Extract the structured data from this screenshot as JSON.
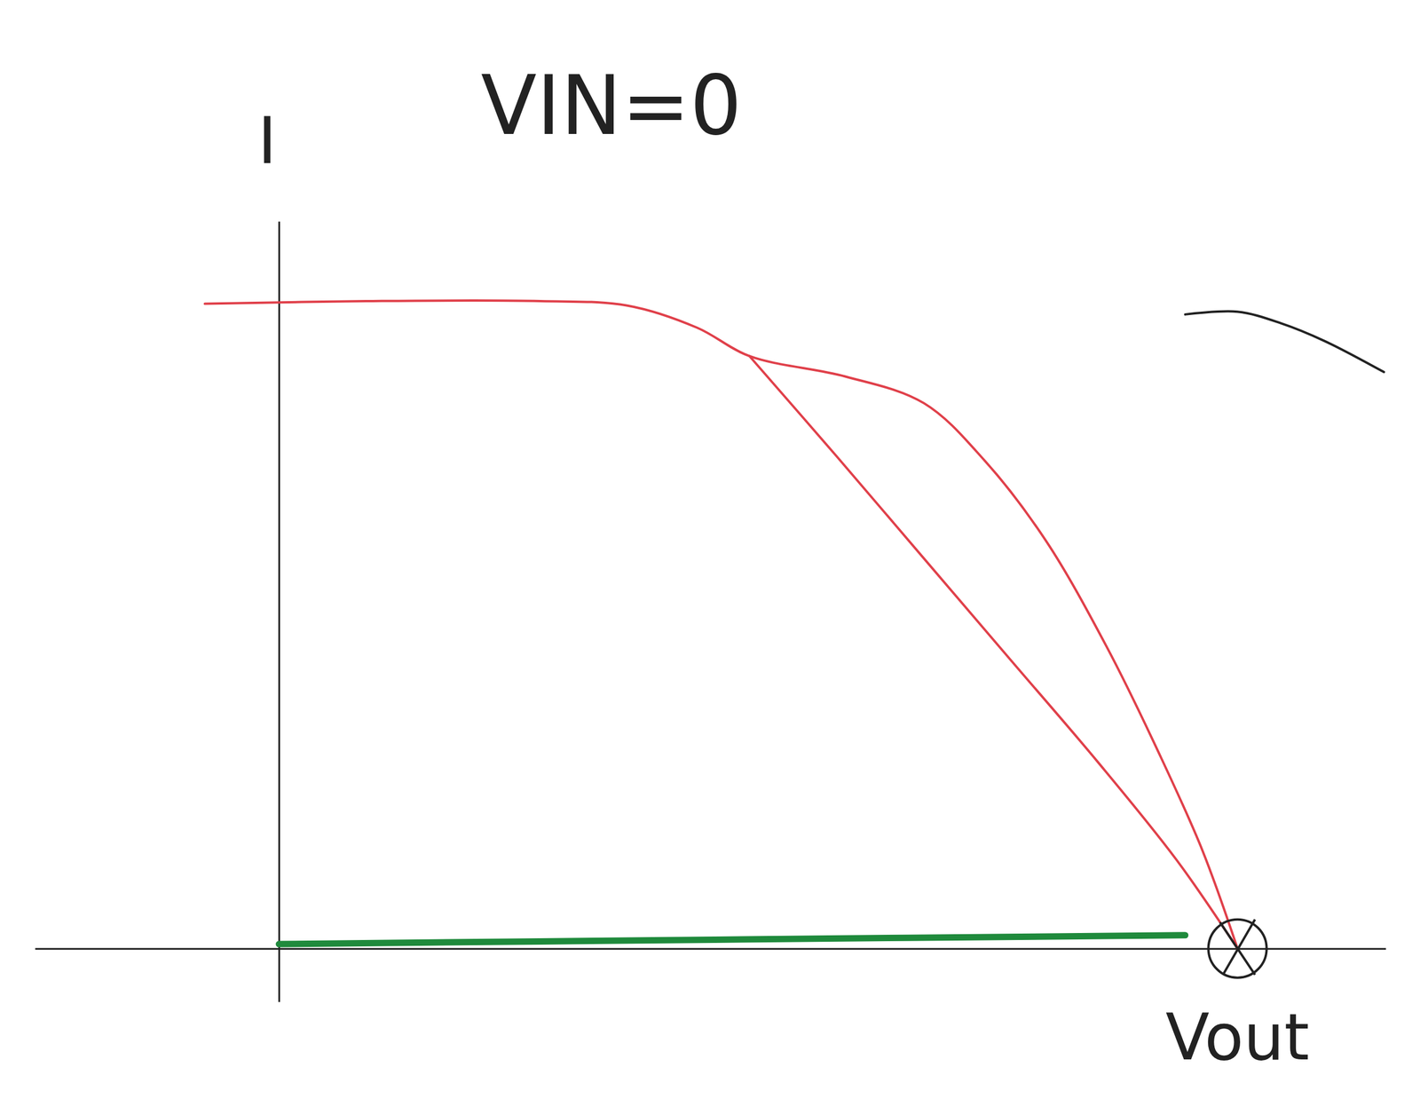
{
  "chart_data": {
    "type": "line",
    "title": "VIN=0",
    "x_label": "Vout",
    "y_label": "I",
    "xlim": [
      -2.8,
      12.7
    ],
    "ylim": [
      -0.6,
      8.2
    ],
    "xticks": [],
    "yticks": [],
    "tick_labels": false,
    "grid": false,
    "series": [
      {
        "color": "#e0404a",
        "line_style": "solid",
        "x": [
          -0.85,
          1.0,
          3.0,
          4.0,
          4.8,
          5.4,
          6.5,
          7.4,
          8.1,
          8.8,
          9.5,
          10.1,
          10.6,
          11.0
        ],
        "values": [
          7.27,
          7.3,
          7.3,
          7.25,
          7.0,
          6.68,
          6.45,
          6.15,
          5.5,
          4.6,
          3.4,
          2.2,
          1.1,
          0.0
        ]
      },
      {
        "color": "#e0404a",
        "line_style": "solid",
        "x": [
          5.4,
          6.4,
          7.4,
          8.4,
          9.4,
          10.3,
          11.0
        ],
        "values": [
          6.68,
          5.55,
          4.4,
          3.25,
          2.1,
          1.0,
          0.0
        ]
      },
      {
        "color": "#1f8a3c",
        "line_style": "heavy",
        "x": [
          0.0,
          5.0,
          10.4
        ],
        "values": [
          0.05,
          0.1,
          0.15
        ]
      },
      {
        "color": "#222222",
        "line_style": "solid",
        "x": [
          10.4,
          11.0,
          11.5,
          12.0,
          12.68
        ],
        "values": [
          7.15,
          7.18,
          7.05,
          6.85,
          6.5
        ]
      },
      {
        "color": "#222222",
        "type": "scatter",
        "marker": "circle-x",
        "x": [
          11.0
        ],
        "values": [
          0.0
        ]
      }
    ]
  }
}
